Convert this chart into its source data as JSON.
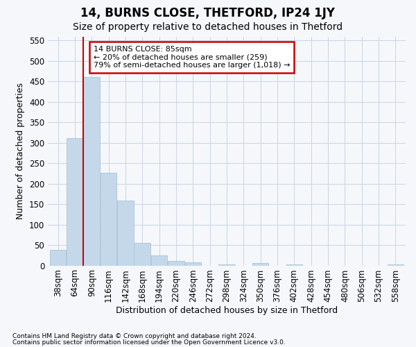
{
  "title": "14, BURNS CLOSE, THETFORD, IP24 1JY",
  "subtitle": "Size of property relative to detached houses in Thetford",
  "xlabel": "Distribution of detached houses by size in Thetford",
  "ylabel": "Number of detached properties",
  "footer_line1": "Contains HM Land Registry data © Crown copyright and database right 2024.",
  "footer_line2": "Contains public sector information licensed under the Open Government Licence v3.0.",
  "bar_labels": [
    "38sqm",
    "64sqm",
    "90sqm",
    "116sqm",
    "142sqm",
    "168sqm",
    "194sqm",
    "220sqm",
    "246sqm",
    "272sqm",
    "298sqm",
    "324sqm",
    "350sqm",
    "376sqm",
    "402sqm",
    "428sqm",
    "454sqm",
    "480sqm",
    "506sqm",
    "532sqm",
    "558sqm"
  ],
  "bar_values": [
    38,
    312,
    460,
    226,
    159,
    55,
    25,
    11,
    8,
    0,
    2,
    0,
    6,
    0,
    2,
    0,
    0,
    0,
    0,
    0,
    3
  ],
  "bar_color": "#c5d8ea",
  "bar_edge_color": "#a8c4d8",
  "ylim": [
    0,
    560
  ],
  "yticks": [
    0,
    50,
    100,
    150,
    200,
    250,
    300,
    350,
    400,
    450,
    500,
    550
  ],
  "annotation_text": "14 BURNS CLOSE: 85sqm\n← 20% of detached houses are smaller (259)\n79% of semi-detached houses are larger (1,018) →",
  "annotation_box_color": "#ffffff",
  "annotation_box_edge": "#cc0000",
  "vline_color": "#cc0000",
  "grid_color": "#c8d4e4",
  "background_color": "#f5f7fa",
  "title_fontsize": 12,
  "subtitle_fontsize": 10,
  "ylabel_fontsize": 9,
  "xlabel_fontsize": 9,
  "tick_fontsize": 8.5,
  "annotation_fontsize": 8,
  "footer_fontsize": 6.5
}
